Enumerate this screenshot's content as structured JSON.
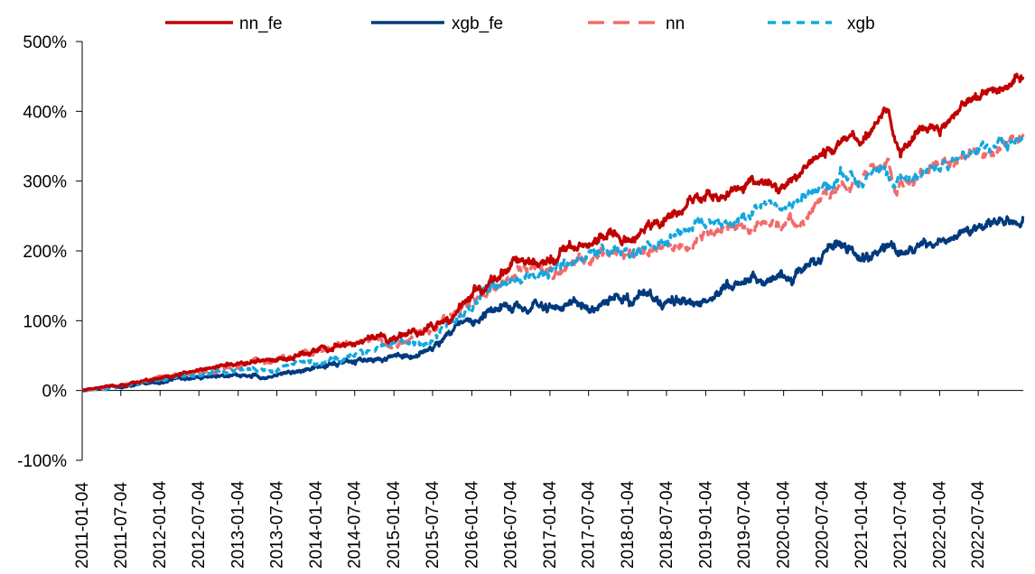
{
  "chart_data": {
    "type": "line",
    "title": "",
    "xlabel": "",
    "ylabel": "",
    "legend_position": "top",
    "grid": false,
    "ylim": [
      -100,
      500
    ],
    "yticks": [
      -100,
      0,
      100,
      200,
      300,
      400,
      500
    ],
    "ytick_labels": [
      "-100%",
      "0%",
      "100%",
      "200%",
      "300%",
      "400%",
      "500%"
    ],
    "xlim": [
      "2011-01-04",
      "2023-01-31"
    ],
    "xticks": [
      "2011-01-04",
      "2011-07-04",
      "2012-01-04",
      "2012-07-04",
      "2013-01-04",
      "2013-07-04",
      "2014-01-04",
      "2014-07-04",
      "2015-01-04",
      "2015-07-04",
      "2016-01-04",
      "2016-07-04",
      "2017-01-04",
      "2017-07-04",
      "2018-01-04",
      "2018-07-04",
      "2019-01-04",
      "2019-07-04",
      "2020-01-04",
      "2020-07-04",
      "2021-01-04",
      "2021-07-04",
      "2022-01-04",
      "2022-07-04"
    ],
    "x": [
      "2011-01-04",
      "2011-07-04",
      "2012-01-04",
      "2012-07-04",
      "2013-01-04",
      "2013-07-04",
      "2014-01-04",
      "2014-07-04",
      "2015-01-04",
      "2015-07-04",
      "2015-10-04",
      "2016-01-04",
      "2016-04-04",
      "2016-07-04",
      "2017-01-04",
      "2017-07-04",
      "2018-01-04",
      "2018-07-04",
      "2019-01-04",
      "2019-04-04",
      "2019-07-04",
      "2019-10-04",
      "2020-01-04",
      "2020-04-04",
      "2020-07-04",
      "2020-10-04",
      "2021-01-04",
      "2021-04-04",
      "2021-05-10",
      "2021-06-10",
      "2021-07-04",
      "2021-10-04",
      "2022-01-04",
      "2022-04-04",
      "2022-07-04",
      "2022-10-04",
      "2023-01-31"
    ],
    "series": [
      {
        "name": "nn_fe",
        "color": "#C00000",
        "dash": "solid",
        "values": [
          0,
          8,
          18,
          28,
          36,
          46,
          55,
          68,
          76,
          88,
          110,
          145,
          160,
          180,
          192,
          210,
          222,
          248,
          277,
          278,
          290,
          295,
          293,
          305,
          337,
          352,
          362,
          395,
          405,
          360,
          343,
          372,
          375,
          400,
          423,
          430,
          445
        ]
      },
      {
        "name": "xgb_fe",
        "color": "#003A7D",
        "dash": "solid",
        "values": [
          0,
          6,
          12,
          20,
          22,
          24,
          33,
          42,
          48,
          60,
          85,
          100,
          110,
          120,
          118,
          125,
          125,
          130,
          135,
          142,
          155,
          160,
          165,
          175,
          190,
          210,
          190,
          200,
          202,
          200,
          195,
          200,
          215,
          222,
          230,
          240,
          246
        ]
      },
      {
        "name": "nn",
        "color": "#F26B6B",
        "dash": "long-dash",
        "values": [
          0,
          7,
          18,
          26,
          34,
          45,
          55,
          68,
          75,
          87,
          110,
          130,
          148,
          165,
          175,
          185,
          195,
          205,
          225,
          230,
          235,
          245,
          235,
          245,
          280,
          290,
          295,
          320,
          330,
          280,
          300,
          310,
          320,
          330,
          340,
          348,
          366
        ]
      },
      {
        "name": "xgb",
        "color": "#12A7E0",
        "dash": "short-dash",
        "values": [
          0,
          6,
          16,
          23,
          28,
          32,
          40,
          55,
          68,
          70,
          100,
          118,
          145,
          160,
          170,
          190,
          200,
          215,
          238,
          240,
          255,
          265,
          255,
          280,
          300,
          312,
          300,
          315,
          305,
          295,
          300,
          315,
          325,
          335,
          345,
          355,
          362
        ]
      }
    ]
  }
}
